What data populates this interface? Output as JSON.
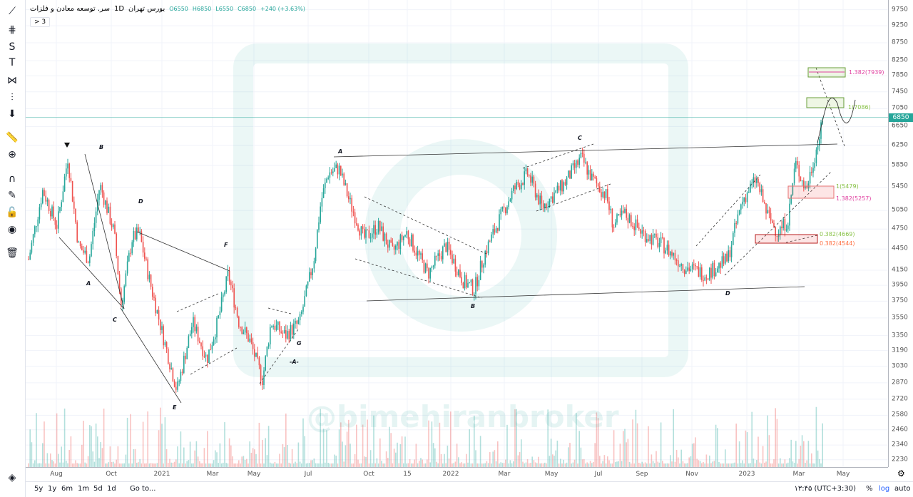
{
  "symbol": {
    "name": "سر. توسعه معادن و فلزات",
    "interval": "1D",
    "exchange": "بورس تهران",
    "open": "O6550",
    "high": "H6850",
    "low": "L6550",
    "close": "C6850",
    "change": "+240 (+3.63%)",
    "indicators_toggle": "> 3"
  },
  "last_price": "6850",
  "price_axis": {
    "scale": "log",
    "ticks": [
      "9750",
      "9250",
      "8750",
      "8250",
      "7850",
      "7450",
      "7050",
      "6650",
      "6250",
      "5850",
      "5450",
      "5050",
      "4750",
      "4450",
      "4150",
      "3950",
      "3750",
      "3550",
      "3350",
      "3190",
      "3030",
      "2870",
      "2720",
      "2580",
      "2460",
      "2340",
      "2230"
    ]
  },
  "time_axis": {
    "ticks": [
      "Aug",
      "Oct",
      "2021",
      "Mar",
      "May",
      "Jul",
      "Oct",
      "15",
      "2022",
      "Mar",
      "May",
      "Jul",
      "Sep",
      "Nov",
      "2023",
      "Mar",
      "May"
    ]
  },
  "wave_labels": [
    "B",
    "D",
    "A",
    "C",
    "E",
    "F",
    "G",
    "-A-",
    "A",
    "B",
    "C",
    "D"
  ],
  "fib_levels": [
    {
      "label": "1.382(7939)",
      "color": "#e040a0"
    },
    {
      "label": "1(7086)",
      "color": "#8bc34a"
    },
    {
      "label": "1(5479)",
      "color": "#8bc34a"
    },
    {
      "label": "1.382(5257)",
      "color": "#e040a0"
    },
    {
      "label": "0.382(4669)",
      "color": "#8bc34a"
    },
    {
      "label": "0.382(4544)",
      "color": "#ff7043"
    }
  ],
  "watermark": "@bimehiranbroker",
  "bottom": {
    "ranges": [
      "5y",
      "1y",
      "6m",
      "1m",
      "5d",
      "1d"
    ],
    "goto": "Go to...",
    "time": "۱۳:۴۵ (UTC+3:30)",
    "percent": "%",
    "log": "log",
    "auto": "auto"
  },
  "colors": {
    "up": "#26a69a",
    "down": "#ef5350",
    "accent": "#2962ff"
  },
  "price_path": [
    [
      40,
      4300
    ],
    [
      60,
      5400
    ],
    [
      80,
      4800
    ],
    [
      95,
      6000
    ],
    [
      110,
      4500
    ],
    [
      125,
      4300
    ],
    [
      140,
      5500
    ],
    [
      160,
      4700
    ],
    [
      170,
      3700
    ],
    [
      185,
      4600
    ],
    [
      195,
      4700
    ],
    [
      210,
      4000
    ],
    [
      230,
      3300
    ],
    [
      248,
      2800
    ],
    [
      270,
      3500
    ],
    [
      290,
      3100
    ],
    [
      305,
      3500
    ],
    [
      320,
      4100
    ],
    [
      335,
      3500
    ],
    [
      350,
      3300
    ],
    [
      368,
      2900
    ],
    [
      380,
      3500
    ],
    [
      400,
      3350
    ],
    [
      420,
      3500
    ],
    [
      440,
      4300
    ],
    [
      450,
      5200
    ],
    [
      460,
      5700
    ],
    [
      475,
      5800
    ],
    [
      490,
      5200
    ],
    [
      510,
      4600
    ],
    [
      530,
      4800
    ],
    [
      550,
      4400
    ],
    [
      570,
      4700
    ],
    [
      600,
      4100
    ],
    [
      625,
      4500
    ],
    [
      650,
      4000
    ],
    [
      665,
      3900
    ],
    [
      680,
      4400
    ],
    [
      700,
      4900
    ],
    [
      720,
      5400
    ],
    [
      740,
      5700
    ],
    [
      760,
      5100
    ],
    [
      790,
      5500
    ],
    [
      815,
      6000
    ],
    [
      830,
      5600
    ],
    [
      850,
      5300
    ],
    [
      860,
      4800
    ],
    [
      875,
      5000
    ],
    [
      900,
      4700
    ],
    [
      930,
      4500
    ],
    [
      960,
      4200
    ],
    [
      990,
      4100
    ],
    [
      1020,
      4300
    ],
    [
      1040,
      5200
    ],
    [
      1060,
      5600
    ],
    [
      1075,
      5000
    ],
    [
      1090,
      4700
    ],
    [
      1105,
      4900
    ],
    [
      1115,
      5900
    ],
    [
      1130,
      5400
    ],
    [
      1145,
      6200
    ],
    [
      1155,
      6850
    ]
  ]
}
